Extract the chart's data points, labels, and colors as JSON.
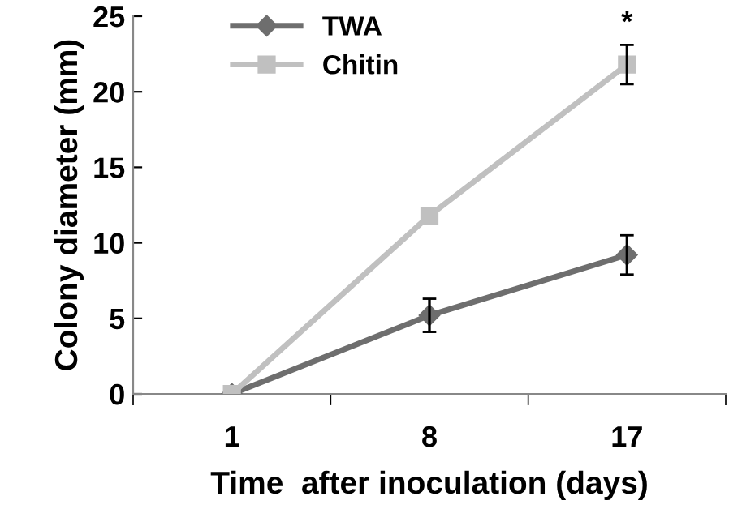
{
  "chart_data": {
    "type": "line",
    "xlabel": "Time  after inoculation (days)",
    "ylabel": "Colony diameter (mm)",
    "categories": [
      "1",
      "8",
      "17"
    ],
    "series": [
      {
        "name": "TWA",
        "color": "#6e6e6e",
        "marker": "diamond",
        "values": [
          0,
          5.2,
          9.2
        ],
        "errors": [
          null,
          1.1,
          1.3
        ]
      },
      {
        "name": "Chitin",
        "color": "#c0c0c0",
        "marker": "square",
        "values": [
          0,
          11.8,
          21.8
        ],
        "errors": [
          null,
          null,
          1.3
        ]
      }
    ],
    "ylim": [
      0,
      25
    ],
    "yticks": [
      0,
      5,
      10,
      15,
      20,
      25
    ],
    "grid": false,
    "legend": "top left",
    "annotations": [
      {
        "text": "*",
        "x": "17",
        "y": 23.6
      }
    ]
  }
}
